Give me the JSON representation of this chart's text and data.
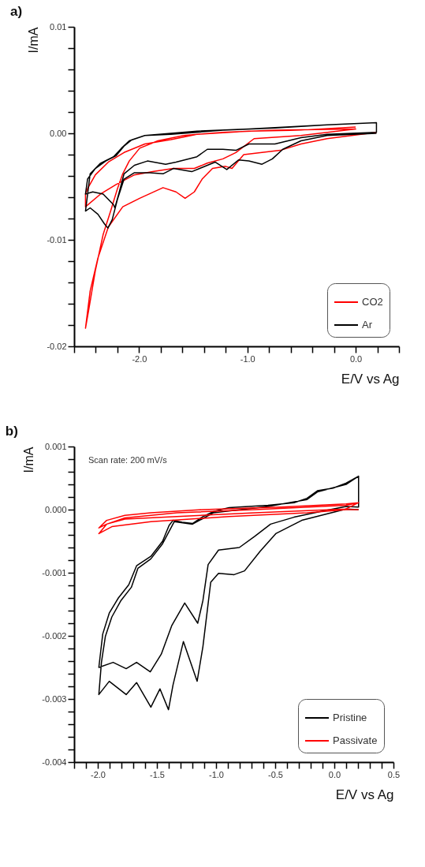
{
  "chart_data": [
    {
      "type": "line",
      "title": "a)",
      "xlabel": "E/V vs Ag",
      "ylabel": "I/mA",
      "legend": "bottom right",
      "xlim": [
        -2.6,
        0.4
      ],
      "ylim": [
        -0.02,
        0.01
      ],
      "xticks": [
        {
          "value": -2.6,
          "label": null
        },
        {
          "value": -2.4,
          "label": null
        },
        {
          "value": -2.2,
          "label": null
        },
        {
          "value": -2.0,
          "label": "-2.0"
        },
        {
          "value": -1.8,
          "label": null
        },
        {
          "value": -1.6,
          "label": null
        },
        {
          "value": -1.4,
          "label": null
        },
        {
          "value": -1.2,
          "label": null
        },
        {
          "value": -1.0,
          "label": "-1.0"
        },
        {
          "value": -0.8,
          "label": null
        },
        {
          "value": -0.6,
          "label": null
        },
        {
          "value": -0.4,
          "label": null
        },
        {
          "value": -0.2,
          "label": null
        },
        {
          "value": 0,
          "label": "0.0"
        },
        {
          "value": 0.2,
          "label": null
        },
        {
          "value": 0.4,
          "label": null
        }
      ],
      "yticks": [
        {
          "value": -0.02,
          "label": "-0.02"
        },
        {
          "value": -0.018,
          "label": null
        },
        {
          "value": -0.016,
          "label": null
        },
        {
          "value": -0.014,
          "label": null
        },
        {
          "value": -0.012,
          "label": null
        },
        {
          "value": -0.01,
          "label": "-0.01"
        },
        {
          "value": -0.008,
          "label": null
        },
        {
          "value": -0.006,
          "label": null
        },
        {
          "value": -0.004,
          "label": null
        },
        {
          "value": -0.002,
          "label": null
        },
        {
          "value": 0,
          "label": "0.00"
        },
        {
          "value": 0.002,
          "label": null
        },
        {
          "value": 0.004,
          "label": null
        },
        {
          "value": 0.006,
          "label": null
        },
        {
          "value": 0.008,
          "label": null
        },
        {
          "value": 0.01,
          "label": "0.01"
        }
      ],
      "series": [
        {
          "name": "CO2",
          "color": "#ff0000",
          "x": [
            0,
            -0.505,
            -0.986,
            -1.466,
            -1.707,
            -1.947,
            -2.139,
            -2.284,
            -2.404,
            -2.476,
            -2.495,
            -2.495,
            -2.356,
            -2.212,
            -2.043,
            -1.875,
            -1.683,
            -1.49,
            -1.37,
            -1.226,
            -1.106,
            -0.938,
            -0.505,
            0,
            -0.745,
            -1.226,
            -1.587,
            -1.827,
            -1.995,
            -2.091,
            -2.151,
            -2.2,
            -2.26,
            -2.332,
            -2.404,
            -2.464,
            -2.495,
            -2.452,
            -2.38,
            -2.284,
            -2.151,
            -1.995,
            -1.779,
            -1.659,
            -1.575,
            -1.49,
            -1.418,
            -1.322,
            -1.202,
            -1.142,
            -1.034,
            -0.697,
            -0.505,
            -0.264,
            0.192
          ],
          "values": [
            0.0006,
            0.0003,
            0.0002,
            -0.0001,
            -0.0006,
            -0.001,
            -0.0018,
            -0.0027,
            -0.0039,
            -0.0052,
            -0.0057,
            -0.0069,
            -0.0057,
            -0.0048,
            -0.0039,
            -0.0036,
            -0.0033,
            -0.0033,
            -0.0028,
            -0.0024,
            -0.0018,
            -0.0005,
            -0.0002,
            0.0004,
            0.0003,
            0.0001,
            -0.0002,
            -0.0007,
            -0.0014,
            -0.0026,
            -0.0038,
            -0.0052,
            -0.0072,
            -0.0095,
            -0.0129,
            -0.0165,
            -0.0183,
            -0.0148,
            -0.0117,
            -0.0088,
            -0.0069,
            -0.0061,
            -0.0051,
            -0.0055,
            -0.0061,
            -0.0055,
            -0.0043,
            -0.0033,
            -0.0031,
            -0.0033,
            -0.002,
            -0.0016,
            -0.001,
            -0.0005,
            0.0001
          ]
        },
        {
          "name": "Ar",
          "color": "#000000",
          "x": [
            0.192,
            -0.264,
            -0.745,
            -1.226,
            -1.707,
            -1.947,
            -2.067,
            -2.139,
            -2.212,
            -2.308,
            -2.404,
            -2.476,
            -2.495,
            -2.428,
            -2.332,
            -2.236,
            -2.224,
            -2.188,
            -2.139,
            -2.043,
            -1.923,
            -1.755,
            -1.659,
            -1.466,
            -1.37,
            -1.226,
            -1.106,
            -0.986,
            -0.745,
            -0.505,
            -0.264,
            0.192,
            0.192,
            -0.264,
            -0.986,
            -1.466,
            -1.947,
            -2.091,
            -2.163,
            -2.236,
            -2.356,
            -2.452,
            -2.495,
            -2.452,
            -2.38,
            -2.32,
            -2.288,
            -2.248,
            -2.2,
            -2.139,
            -2.043,
            -1.899,
            -1.779,
            -1.683,
            -1.514,
            -1.418,
            -1.298,
            -1.19,
            -1.082,
            -0.986,
            -0.865,
            -0.769,
            -0.673,
            -0.505,
            -0.264,
            0.192
          ],
          "values": [
            0.001,
            0.0008,
            0.0005,
            0.0003,
            -0.0001,
            -0.0002,
            -0.0006,
            -0.0012,
            -0.0021,
            -0.0026,
            -0.0033,
            -0.0043,
            -0.0057,
            -0.0055,
            -0.0057,
            -0.0067,
            -0.007,
            -0.0057,
            -0.0038,
            -0.003,
            -0.0026,
            -0.0029,
            -0.0027,
            -0.0022,
            -0.0015,
            -0.0015,
            -0.0016,
            -0.001,
            -0.001,
            -0.0004,
            -0.0001,
            0.0001,
            0.001,
            0.0008,
            0.0004,
            0.0002,
            -0.0002,
            -0.0007,
            -0.0014,
            -0.0022,
            -0.0028,
            -0.0038,
            -0.0073,
            -0.007,
            -0.0076,
            -0.0085,
            -0.0089,
            -0.0081,
            -0.0062,
            -0.0043,
            -0.0037,
            -0.0037,
            -0.0038,
            -0.0033,
            -0.0036,
            -0.0032,
            -0.0027,
            -0.0034,
            -0.0025,
            -0.0026,
            -0.0029,
            -0.0024,
            -0.0015,
            -0.0007,
            -0.0002,
            0
          ]
        }
      ]
    },
    {
      "type": "line",
      "title": "b)",
      "xlabel": "E/V vs Ag",
      "ylabel": "I/mA",
      "legend": "bottom right",
      "annotations": [
        "Scan rate: 200 mV/s"
      ],
      "xlim": [
        -2.2,
        0.5
      ],
      "ylim": [
        -0.004,
        0.001
      ],
      "xticks": [
        {
          "value": -2.2,
          "label": null
        },
        {
          "value": -2.1,
          "label": null
        },
        {
          "value": -2.0,
          "label": "-2.0"
        },
        {
          "value": -1.9,
          "label": null
        },
        {
          "value": -1.8,
          "label": null
        },
        {
          "value": -1.7,
          "label": null
        },
        {
          "value": -1.6,
          "label": null
        },
        {
          "value": -1.5,
          "label": "-1.5"
        },
        {
          "value": -1.4,
          "label": null
        },
        {
          "value": -1.3,
          "label": null
        },
        {
          "value": -1.2,
          "label": null
        },
        {
          "value": -1.1,
          "label": null
        },
        {
          "value": -1.0,
          "label": "-1.0"
        },
        {
          "value": -0.9,
          "label": null
        },
        {
          "value": -0.8,
          "label": null
        },
        {
          "value": -0.7,
          "label": null
        },
        {
          "value": -0.6,
          "label": null
        },
        {
          "value": -0.5,
          "label": "-0.5"
        },
        {
          "value": -0.4,
          "label": null
        },
        {
          "value": -0.3,
          "label": null
        },
        {
          "value": -0.2,
          "label": null
        },
        {
          "value": -0.1,
          "label": null
        },
        {
          "value": 0,
          "label": "0.0"
        },
        {
          "value": 0.1,
          "label": null
        },
        {
          "value": 0.2,
          "label": null
        },
        {
          "value": 0.3,
          "label": null
        },
        {
          "value": 0.4,
          "label": null
        },
        {
          "value": 0.5,
          "label": "0.5"
        }
      ],
      "yticks": [
        {
          "value": -0.004,
          "label": "-0.004"
        },
        {
          "value": -0.0038,
          "label": null
        },
        {
          "value": -0.0036,
          "label": null
        },
        {
          "value": -0.0034,
          "label": null
        },
        {
          "value": -0.0032,
          "label": null
        },
        {
          "value": -0.003,
          "label": "-0.003"
        },
        {
          "value": -0.0028,
          "label": null
        },
        {
          "value": -0.0026,
          "label": null
        },
        {
          "value": -0.0024,
          "label": null
        },
        {
          "value": -0.0022,
          "label": null
        },
        {
          "value": -0.002,
          "label": "-0.002"
        },
        {
          "value": -0.0018,
          "label": null
        },
        {
          "value": -0.0016,
          "label": null
        },
        {
          "value": -0.0014,
          "label": null
        },
        {
          "value": -0.0012,
          "label": null
        },
        {
          "value": -0.001,
          "label": "-0.001"
        },
        {
          "value": -0.0008,
          "label": null
        },
        {
          "value": -0.0006,
          "label": null
        },
        {
          "value": -0.0004,
          "label": null
        },
        {
          "value": -0.0002,
          "label": null
        },
        {
          "value": 0,
          "label": "0.000"
        },
        {
          "value": 0.0002,
          "label": null
        },
        {
          "value": 0.0004,
          "label": null
        },
        {
          "value": 0.0006,
          "label": null
        },
        {
          "value": 0.0008,
          "label": null
        },
        {
          "value": 0.001,
          "label": "0.001"
        }
      ],
      "series": [
        {
          "name": "Pristine",
          "color": "#000000",
          "x": [
            0.205,
            0.099,
            -0.011,
            -0.143,
            -0.231,
            -0.341,
            -0.561,
            -0.891,
            -1.023,
            -1.111,
            -1.199,
            -1.287,
            -1.364,
            -1.397,
            -1.452,
            -1.551,
            -1.672,
            -1.738,
            -1.826,
            -1.903,
            -1.958,
            -1.991,
            -1.87,
            -1.76,
            -1.672,
            -1.556,
            -1.463,
            -1.375,
            -1.265,
            -1.155,
            -1.111,
            -1.067,
            -0.979,
            -0.803,
            -0.671,
            -0.539,
            -0.341,
            -0.121,
            0.099,
            0.205,
            0.205,
            0.099,
            -0.143,
            -0.231,
            -0.561,
            -1.023,
            -1.199,
            -1.353,
            -1.452,
            -1.551,
            -1.661,
            -1.716,
            -1.804,
            -1.881,
            -1.936,
            -1.969,
            -1.991,
            -1.903,
            -1.76,
            -1.672,
            -1.551,
            -1.474,
            -1.402,
            -1.364,
            -1.276,
            -1.16,
            -1.111,
            -1.045,
            -0.979,
            -0.847,
            -0.759,
            -0.627,
            -0.495,
            -0.275,
            0.099,
            0.205
          ],
          "values": [
            0.00053,
            0.00042,
            0.00034,
            0.0003,
            0.00018,
            0.00011,
            7e-05,
            3e-05,
            -3e-05,
            -0.00011,
            -0.00022,
            -0.0002,
            -0.00017,
            -0.00025,
            -0.0005,
            -0.00074,
            -0.00089,
            -0.00119,
            -0.0014,
            -0.00164,
            -0.00197,
            -0.0025,
            -0.00242,
            -0.00252,
            -0.00242,
            -0.00257,
            -0.00229,
            -0.00184,
            -0.00148,
            -0.0018,
            -0.00144,
            -0.00087,
            -0.00064,
            -0.0006,
            -0.00042,
            -0.00023,
            -0.00012,
            -3e-05,
            5e-05,
            4e-05,
            0.00053,
            0.0004,
            0.00028,
            0.00016,
            5e-05,
            -5e-05,
            -0.00023,
            -0.00019,
            -0.00054,
            -0.00078,
            -0.00093,
            -0.00123,
            -0.00144,
            -0.0017,
            -0.00201,
            -0.00242,
            -0.00293,
            -0.00272,
            -0.00293,
            -0.00274,
            -0.00313,
            -0.00284,
            -0.00317,
            -0.00278,
            -0.00209,
            -0.00272,
            -0.00217,
            -0.00115,
            -0.00101,
            -0.00103,
            -0.00097,
            -0.00066,
            -0.00038,
            -0.00017,
            1e-05,
            0
          ]
        },
        {
          "name": "Passivate",
          "color": "#ff0000",
          "x": [
            0.205,
            0.099,
            -0.451,
            -1.111,
            -1.551,
            -1.771,
            -1.925,
            -1.991,
            -1.925,
            -1.771,
            -1.331,
            -0.671,
            0.099,
            0.205,
            0.099,
            -0.671,
            -1.331,
            -1.771,
            -1.925,
            -1.991,
            -1.881,
            -1.551,
            -0.891,
            -0.231,
            0.099,
            0.205
          ],
          "values": [
            0.00011,
            9e-05,
            4e-05,
            0,
            -5e-05,
            -9e-05,
            -0.00017,
            -0.00029,
            -0.00023,
            -0.00015,
            -0.00011,
            -5e-05,
            1e-05,
            0.00011,
            7e-05,
            0,
            -5e-05,
            -0.00013,
            -0.00023,
            -0.00038,
            -0.00027,
            -0.00019,
            -0.00011,
            -5e-05,
            0,
            0
          ]
        }
      ]
    }
  ]
}
